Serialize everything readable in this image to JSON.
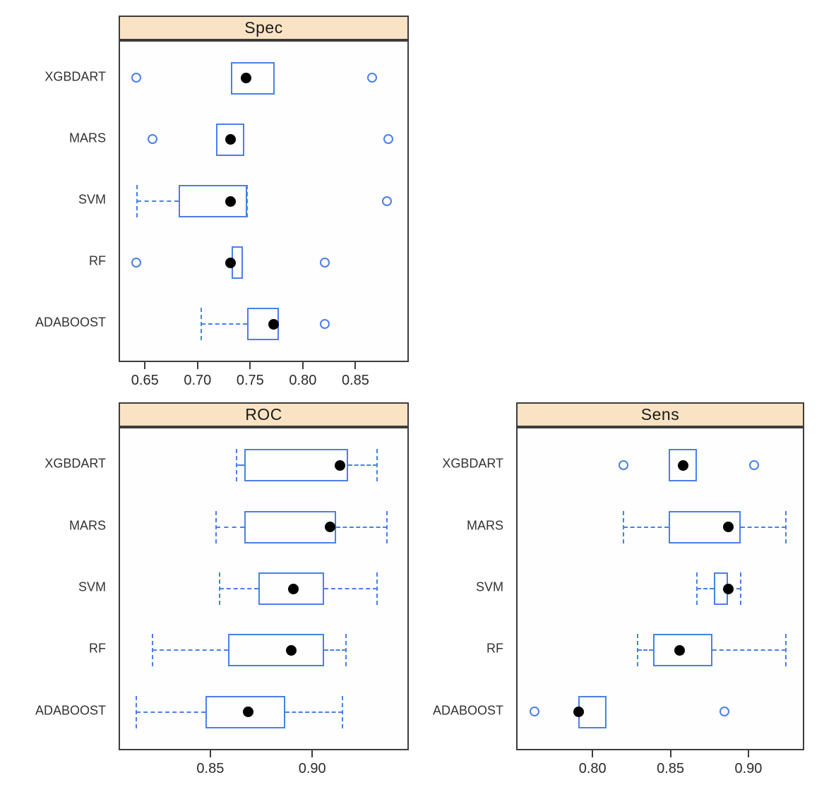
{
  "figure": {
    "kind": "resampling-performance-boxplots",
    "models": [
      "XGBDART",
      "MARS",
      "SVM",
      "RF",
      "ADABOOST"
    ],
    "colors": {
      "box_blue": "#4a80e8",
      "strip_fill": "#fae3c4",
      "panel_border": "#3d3d3d",
      "median_dot": "#000000",
      "background": "#ffffff"
    }
  },
  "chart_data": [
    {
      "type": "boxplot",
      "title": "Spec",
      "orientation": "horizontal",
      "categories": [
        "XGBDART",
        "MARS",
        "SVM",
        "RF",
        "ADABOOST"
      ],
      "x_range": [
        0.625,
        0.898
      ],
      "x_ticks": [
        0.65,
        0.7,
        0.75,
        0.8,
        0.85
      ],
      "x_tick_labels": [
        "0.65",
        "0.70",
        "0.75",
        "0.80",
        "0.85"
      ],
      "series": [
        {
          "model": "XGBDART",
          "whisker_low": null,
          "q1": 0.73,
          "median": 0.745,
          "q3": 0.772,
          "whisker_high": null,
          "outliers": [
            0.641,
            0.865
          ]
        },
        {
          "model": "MARS",
          "whisker_low": null,
          "q1": 0.716,
          "median": 0.73,
          "q3": 0.743,
          "whisker_high": null,
          "outliers": [
            0.656,
            0.88
          ]
        },
        {
          "model": "SVM",
          "whisker_low": 0.641,
          "q1": 0.681,
          "median": 0.73,
          "q3": 0.746,
          "whisker_high": 0.746,
          "outliers": [
            0.879
          ]
        },
        {
          "model": "RF",
          "whisker_low": null,
          "q1": 0.731,
          "median": 0.73,
          "q3": 0.742,
          "whisker_high": null,
          "outliers": [
            0.641,
            0.82
          ]
        },
        {
          "model": "ADABOOST",
          "whisker_low": 0.702,
          "q1": 0.746,
          "median": 0.771,
          "q3": 0.776,
          "whisker_high": null,
          "outliers": [
            0.82
          ]
        }
      ]
    },
    {
      "type": "boxplot",
      "title": "ROC",
      "orientation": "horizontal",
      "categories": [
        "XGBDART",
        "MARS",
        "SVM",
        "RF",
        "ADABOOST"
      ],
      "x_range": [
        0.805,
        0.946
      ],
      "x_ticks": [
        0.85,
        0.9
      ],
      "x_tick_labels": [
        "0.85",
        "0.90"
      ],
      "series": [
        {
          "model": "XGBDART",
          "whisker_low": 0.862,
          "q1": 0.866,
          "median": 0.913,
          "q3": 0.917,
          "whisker_high": 0.931,
          "outliers": []
        },
        {
          "model": "MARS",
          "whisker_low": 0.852,
          "q1": 0.866,
          "median": 0.908,
          "q3": 0.911,
          "whisker_high": 0.936,
          "outliers": []
        },
        {
          "model": "SVM",
          "whisker_low": 0.854,
          "q1": 0.873,
          "median": 0.89,
          "q3": 0.905,
          "whisker_high": 0.931,
          "outliers": []
        },
        {
          "model": "RF",
          "whisker_low": 0.821,
          "q1": 0.858,
          "median": 0.889,
          "q3": 0.905,
          "whisker_high": 0.916,
          "outliers": []
        },
        {
          "model": "ADABOOST",
          "whisker_low": 0.813,
          "q1": 0.847,
          "median": 0.868,
          "q3": 0.886,
          "whisker_high": 0.914,
          "outliers": []
        }
      ]
    },
    {
      "type": "boxplot",
      "title": "Sens",
      "orientation": "horizontal",
      "categories": [
        "XGBDART",
        "MARS",
        "SVM",
        "RF",
        "ADABOOST"
      ],
      "x_range": [
        0.751,
        0.934
      ],
      "x_ticks": [
        0.8,
        0.85,
        0.9
      ],
      "x_tick_labels": [
        "0.80",
        "0.85",
        "0.90"
      ],
      "series": [
        {
          "model": "XGBDART",
          "whisker_low": null,
          "q1": 0.848,
          "median": 0.857,
          "q3": 0.866,
          "whisker_high": null,
          "outliers": [
            0.819,
            0.903
          ]
        },
        {
          "model": "MARS",
          "whisker_low": 0.819,
          "q1": 0.848,
          "median": 0.886,
          "q3": 0.894,
          "whisker_high": 0.923,
          "outliers": []
        },
        {
          "model": "SVM",
          "whisker_low": 0.866,
          "q1": 0.877,
          "median": 0.886,
          "q3": 0.886,
          "whisker_high": 0.894,
          "outliers": []
        },
        {
          "model": "RF",
          "whisker_low": 0.828,
          "q1": 0.838,
          "median": 0.855,
          "q3": 0.876,
          "whisker_high": 0.923,
          "outliers": []
        },
        {
          "model": "ADABOOST",
          "whisker_low": null,
          "q1": 0.79,
          "median": 0.79,
          "q3": 0.808,
          "whisker_high": null,
          "outliers": [
            0.762,
            0.884
          ]
        }
      ]
    }
  ]
}
